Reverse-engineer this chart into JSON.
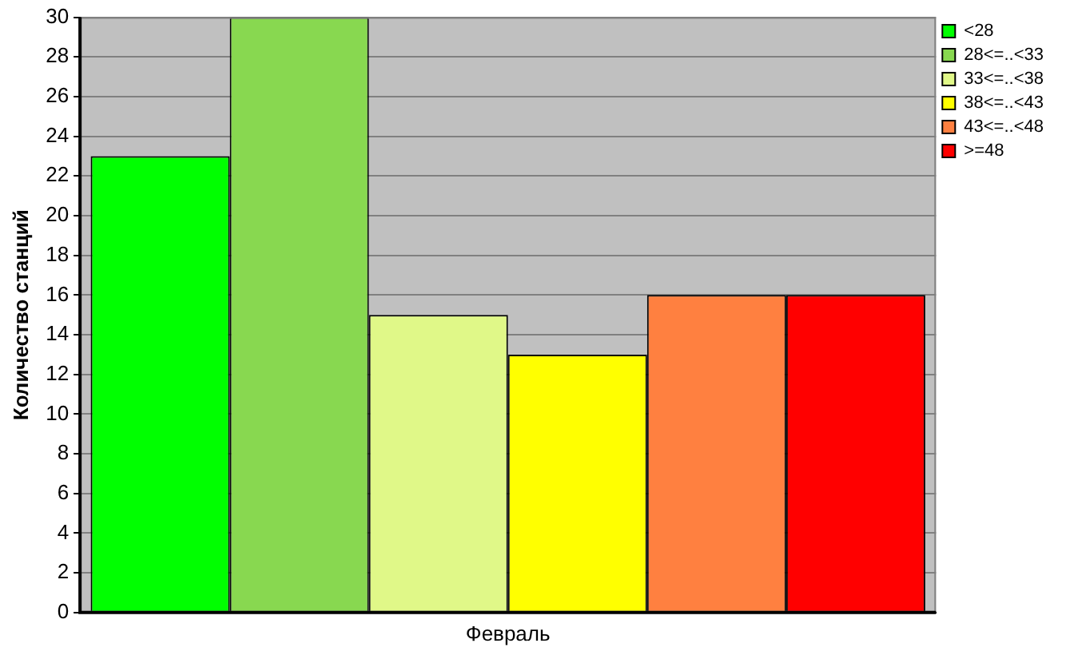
{
  "chart_data": {
    "type": "bar",
    "ylabel": "Количество станций",
    "categories": [
      "Февраль"
    ],
    "series": [
      {
        "name": "<28",
        "color": "#00ff00",
        "values": [
          23
        ]
      },
      {
        "name": "28<=..<33",
        "color": "#88d850",
        "values": [
          30
        ]
      },
      {
        "name": "33<=..<38",
        "color": "#e0f888",
        "values": [
          15
        ]
      },
      {
        "name": "38<=..<43",
        "color": "#ffff00",
        "values": [
          13
        ]
      },
      {
        "name": "43<=..<48",
        "color": "#ff8040",
        "values": [
          16
        ]
      },
      {
        "name": ">=48",
        "color": "#ff0000",
        "values": [
          16
        ]
      }
    ],
    "ylim": [
      0,
      30
    ],
    "yticks": [
      0,
      2,
      4,
      6,
      8,
      10,
      12,
      14,
      16,
      18,
      20,
      22,
      24,
      26,
      28,
      30
    ],
    "grid": "y",
    "legend": "top right"
  }
}
